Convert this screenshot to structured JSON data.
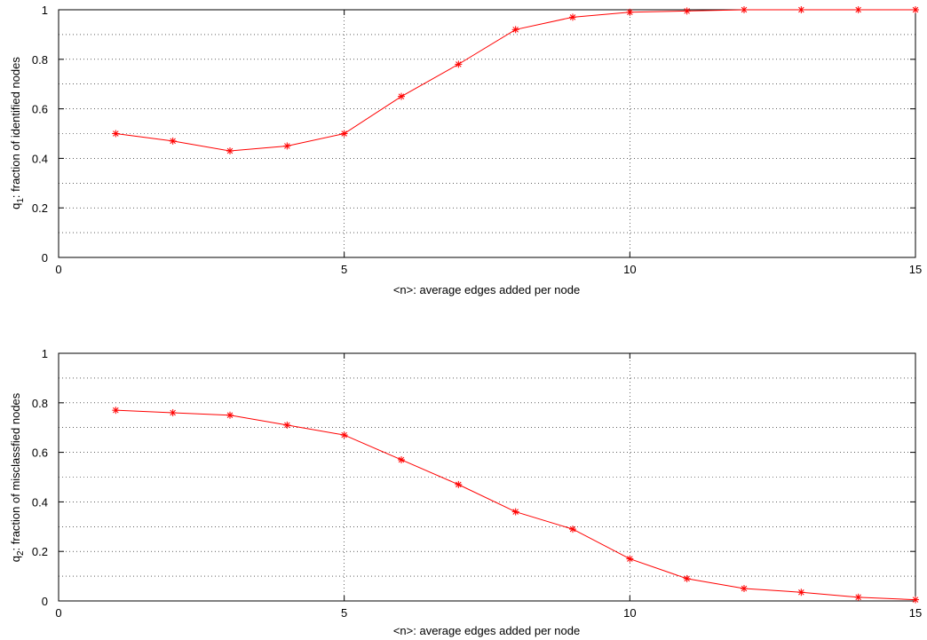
{
  "chart_data": [
    {
      "type": "line",
      "title": "",
      "xlabel": "<n>: average edges added per node",
      "ylabel": "q",
      "ylabel_subscript": "1",
      "ylabel_suffix": ": fraction of identified nodes",
      "xlim": [
        0,
        15
      ],
      "ylim": [
        0,
        1
      ],
      "xticks": [
        0,
        5,
        10,
        15
      ],
      "yticks": [
        0,
        0.2,
        0.4,
        0.6,
        0.8,
        1
      ],
      "ytick_labels": [
        "0",
        "0.2",
        "0.4",
        "0.6",
        "0.8",
        "1"
      ],
      "grid": "dotted",
      "line_color": "#ff0000",
      "marker": "asterisk",
      "x": [
        1,
        2,
        3,
        4,
        5,
        6,
        7,
        8,
        9,
        10,
        11,
        12,
        13,
        14,
        15
      ],
      "values": [
        0.5,
        0.47,
        0.43,
        0.45,
        0.5,
        0.65,
        0.78,
        0.92,
        0.97,
        0.99,
        0.995,
        1.0,
        1.0,
        1.0,
        1.0
      ]
    },
    {
      "type": "line",
      "title": "",
      "xlabel": "<n>: average edges added per node",
      "ylabel": "q",
      "ylabel_subscript": "2",
      "ylabel_suffix": ": fraction of misclassfied nodes",
      "xlim": [
        0,
        15
      ],
      "ylim": [
        0,
        1
      ],
      "xticks": [
        0,
        5,
        10,
        15
      ],
      "yticks": [
        0,
        0.2,
        0.4,
        0.6,
        0.8,
        1
      ],
      "ytick_labels": [
        "0",
        "0.2",
        "0.4",
        "0.6",
        "0.8",
        "1"
      ],
      "grid": "dotted",
      "line_color": "#ff0000",
      "marker": "asterisk",
      "x": [
        1,
        2,
        3,
        4,
        5,
        6,
        7,
        8,
        9,
        10,
        11,
        12,
        13,
        14,
        15
      ],
      "values": [
        0.77,
        0.76,
        0.75,
        0.71,
        0.67,
        0.57,
        0.47,
        0.36,
        0.29,
        0.17,
        0.09,
        0.05,
        0.035,
        0.015,
        0.005
      ]
    }
  ]
}
